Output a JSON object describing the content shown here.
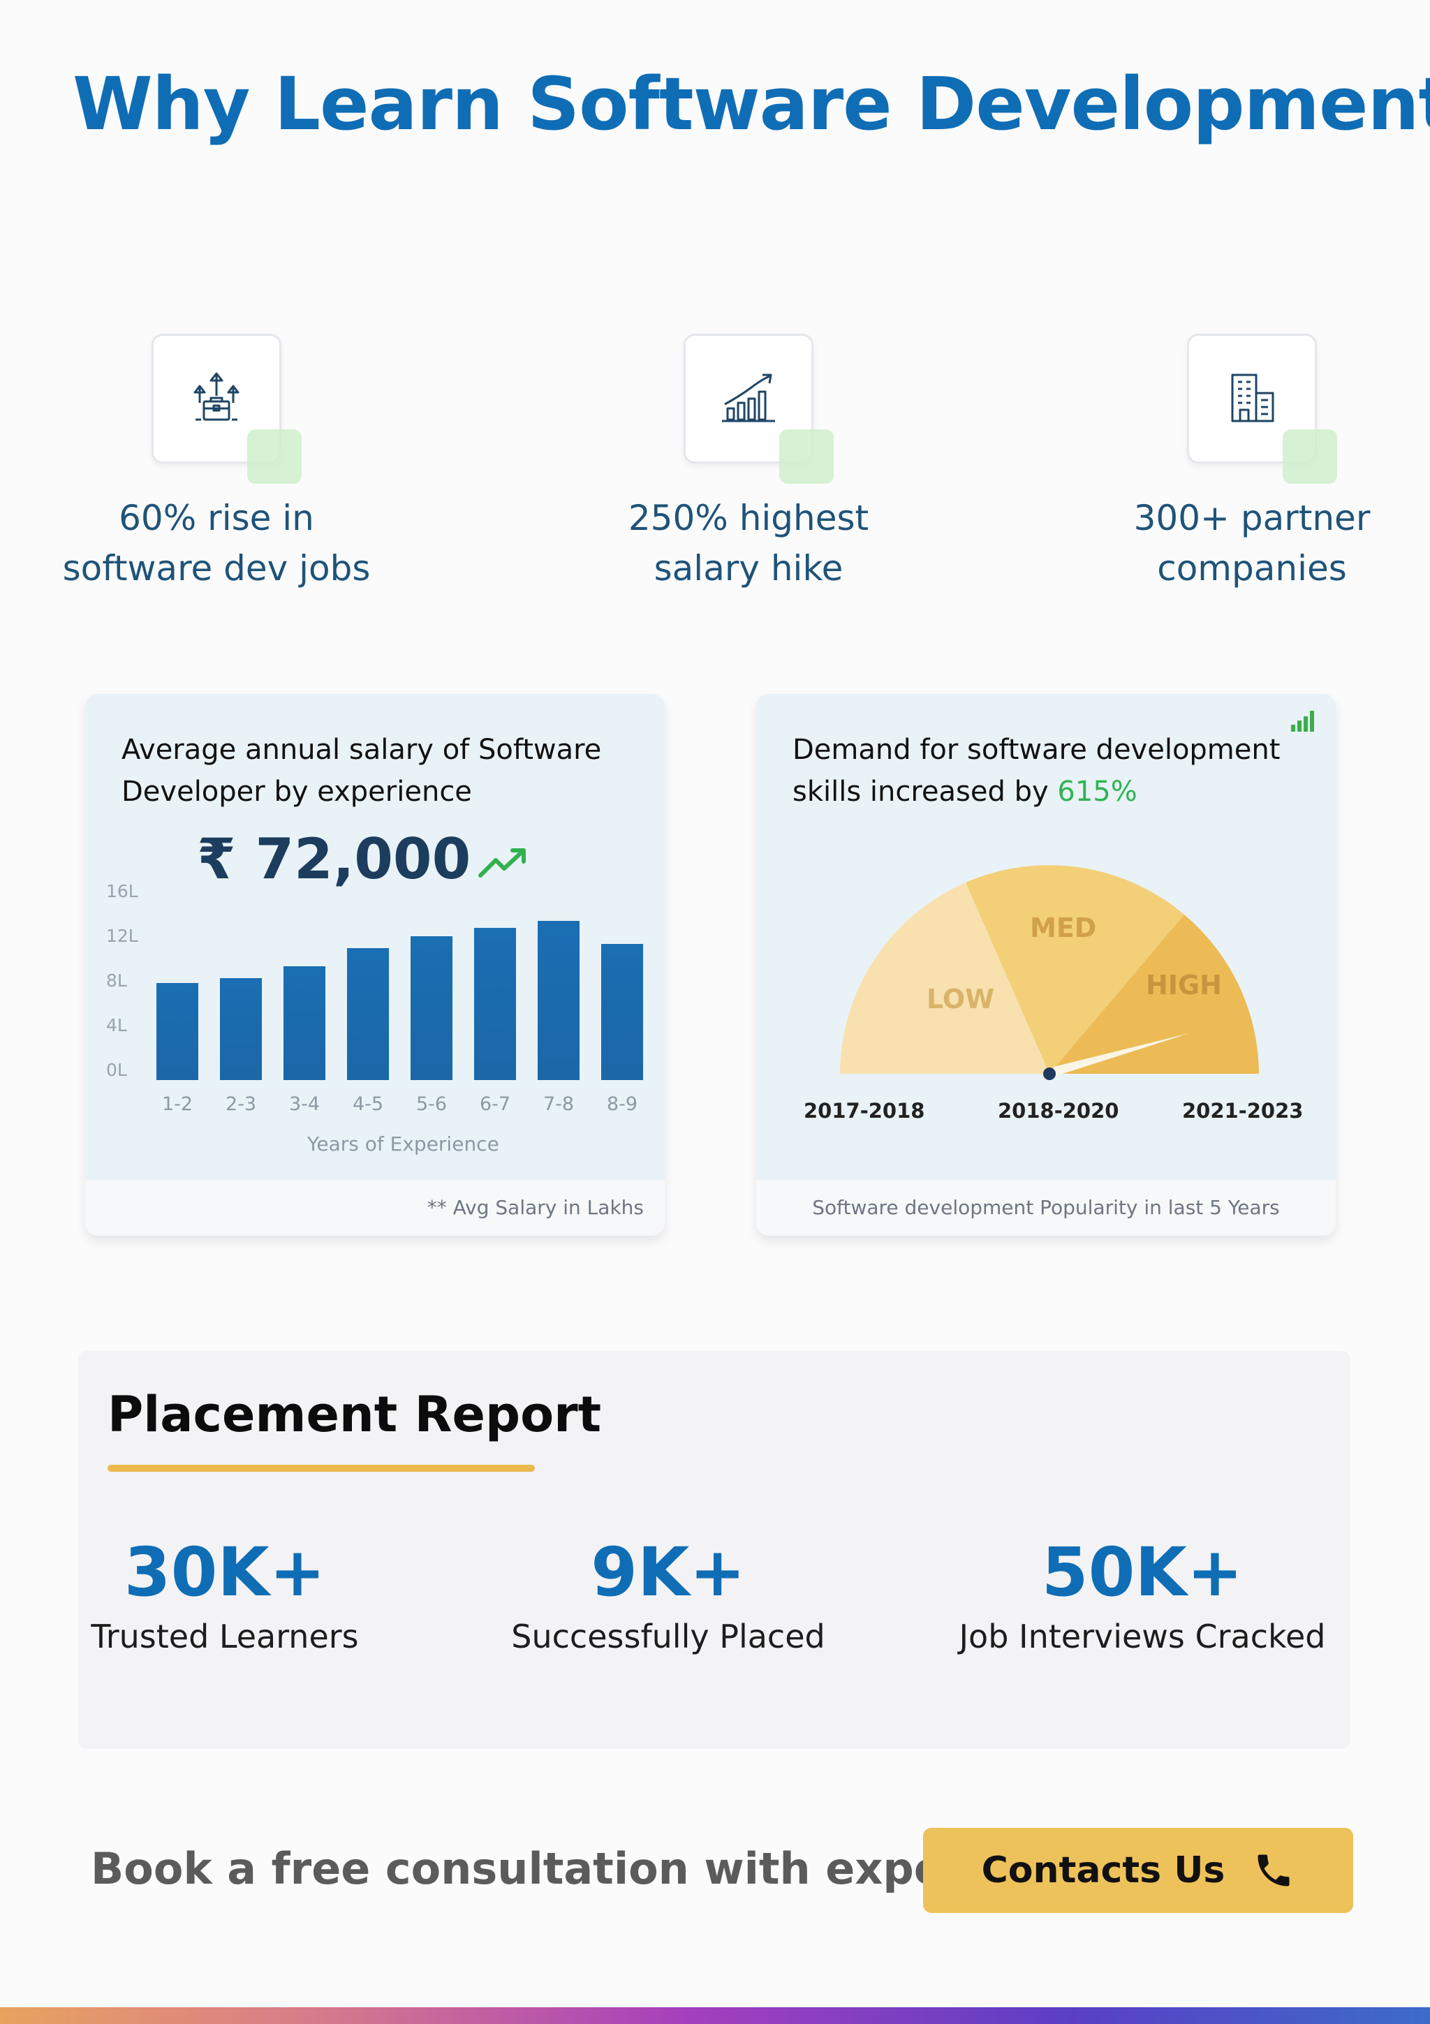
{
  "header": {
    "title": "Why Learn Software Development?"
  },
  "features": [
    {
      "icon": "briefcase-arrows-icon",
      "line1": "60% rise in",
      "line2": "software dev jobs"
    },
    {
      "icon": "growth-chart-icon",
      "line1": "250% highest",
      "line2": "salary hike"
    },
    {
      "icon": "office-building-icon",
      "line1": "300+ partner",
      "line2": "companies"
    }
  ],
  "salary_card": {
    "title": "Average annual salary of Software Developer by experience",
    "amount": "₹ 72,000",
    "footer": "** Avg Salary in Lakhs",
    "x_label": "Years of Experience",
    "y_ticks": [
      "16L",
      "12L",
      "8L",
      "4L",
      "0L"
    ]
  },
  "demand_card": {
    "title_prefix": "Demand for software development skills increased by ",
    "title_highlight": "615%",
    "footer": "Software development Popularity in last 5 Years",
    "zones": [
      "LOW",
      "MED",
      "HIGH"
    ],
    "years": [
      "2017-2018",
      "2018-2020",
      "2021-2023"
    ]
  },
  "chart_data": {
    "type": "bar",
    "categories": [
      "1-2",
      "2-3",
      "3-4",
      "4-5",
      "5-6",
      "6-7",
      "7-8",
      "8-9"
    ],
    "values": [
      8.2,
      8.6,
      9.6,
      11.1,
      12.1,
      12.8,
      13.4,
      11.5
    ],
    "ylim": [
      0,
      16
    ],
    "xlabel": "Years of Experience",
    "ylabel": ""
  },
  "placement": {
    "title": "Placement Report",
    "stats": [
      {
        "value": "30K+",
        "label": "Trusted Learners"
      },
      {
        "value": "9K+",
        "label": "Successfully Placed"
      },
      {
        "value": "50K+",
        "label": "Job Interviews Cracked"
      }
    ]
  },
  "cta": {
    "text": "Book a free consultation with expert",
    "button_label": "Contacts Us",
    "button_icon": "phone-icon"
  },
  "colors": {
    "primary_blue": "#0f6db5",
    "accent_green": "#2fb455",
    "accent_yellow": "#eec25a"
  }
}
